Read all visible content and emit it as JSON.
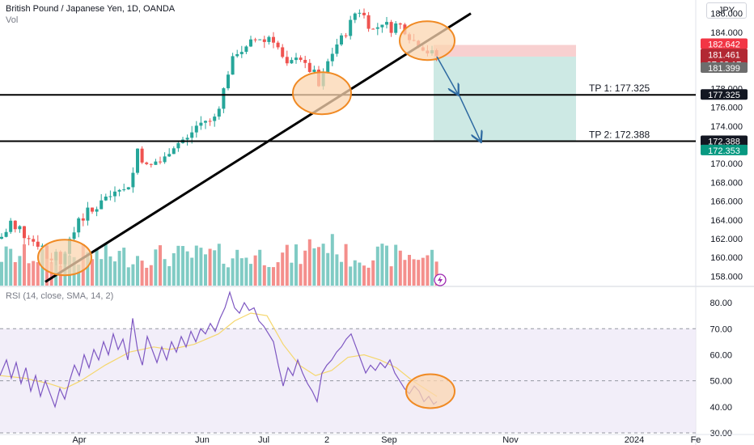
{
  "header": {
    "title": "British Pound / Japanese Yen, 1D, OANDA",
    "vol_label": "Vol",
    "currency": "JPY",
    "rsi_label": "RSI (14, close, SMA, 14, 2)"
  },
  "colors": {
    "up": "#26a69a",
    "down": "#ef5350",
    "vol_up": "#80cbc4",
    "vol_down": "#f48f8c",
    "rsi": "#7e57c2",
    "rsi_ma": "#f5d76e",
    "circle_fill": "#fbd5b0",
    "circle_stroke": "#f08a24",
    "target_zone": "#cde9e4",
    "stop_zone": "#f8d0d0",
    "arrow": "#2e6aa1"
  },
  "chart_data": {
    "type": "candlestick",
    "ylim": [
      157,
      187
    ],
    "y_ticks": [
      "186.000",
      "184.000",
      "182.000",
      "180.000",
      "178.000",
      "176.000",
      "174.000",
      "172.000",
      "170.000",
      "168.000",
      "166.000",
      "164.000",
      "162.000",
      "160.000",
      "158.000"
    ],
    "x_ticks": [
      "Apr",
      "Jun",
      "Jul",
      "2",
      "Sep",
      "Nov",
      "2024",
      "Fe"
    ],
    "close_path": [
      [
        0,
        162.0
      ],
      [
        8,
        162.8
      ],
      [
        14,
        164.0
      ],
      [
        20,
        162.6
      ],
      [
        26,
        163.4
      ],
      [
        32,
        161.8
      ],
      [
        38,
        162.6
      ],
      [
        44,
        161.0
      ],
      [
        50,
        161.9
      ],
      [
        56,
        160.2
      ],
      [
        62,
        159.6
      ],
      [
        68,
        160.8
      ],
      [
        74,
        159.4
      ],
      [
        80,
        160.7
      ],
      [
        86,
        161.6
      ],
      [
        92,
        162.8
      ],
      [
        98,
        164.6
      ],
      [
        104,
        164.0
      ],
      [
        110,
        165.3
      ],
      [
        116,
        164.6
      ],
      [
        122,
        165.9
      ],
      [
        128,
        166.6
      ],
      [
        134,
        166.2
      ],
      [
        140,
        167.1
      ],
      [
        146,
        167.8
      ],
      [
        152,
        167.0
      ],
      [
        158,
        167.6
      ],
      [
        164,
        168.8
      ],
      [
        170,
        171.6
      ],
      [
        176,
        170.4
      ],
      [
        182,
        169.6
      ],
      [
        188,
        169.8
      ],
      [
        194,
        170.4
      ],
      [
        200,
        170.1
      ],
      [
        206,
        170.9
      ],
      [
        212,
        171.8
      ],
      [
        218,
        172.0
      ],
      [
        224,
        172.6
      ],
      [
        230,
        172.4
      ],
      [
        236,
        173.2
      ],
      [
        242,
        174.0
      ],
      [
        248,
        174.3
      ],
      [
        254,
        174.6
      ],
      [
        260,
        174.4
      ],
      [
        266,
        175.1
      ],
      [
        272,
        176.5
      ],
      [
        278,
        178.4
      ],
      [
        284,
        180.4
      ],
      [
        290,
        181.5
      ],
      [
        296,
        182.3
      ],
      [
        302,
        181.8
      ],
      [
        308,
        182.8
      ],
      [
        314,
        183.1
      ],
      [
        320,
        183.5
      ],
      [
        326,
        182.9
      ],
      [
        332,
        183.6
      ],
      [
        338,
        183.2
      ],
      [
        344,
        182.3
      ],
      [
        350,
        181.0
      ],
      [
        356,
        180.2
      ],
      [
        362,
        181.0
      ],
      [
        368,
        181.9
      ],
      [
        374,
        180.8
      ],
      [
        380,
        180.0
      ],
      [
        386,
        179.9
      ],
      [
        392,
        179.2
      ],
      [
        396,
        177.2
      ],
      [
        400,
        179.6
      ],
      [
        406,
        181.0
      ],
      [
        412,
        182.0
      ],
      [
        418,
        183.0
      ],
      [
        424,
        183.5
      ],
      [
        430,
        184.3
      ],
      [
        436,
        185.7
      ],
      [
        442,
        186.4
      ],
      [
        448,
        186.1
      ],
      [
        454,
        185.0
      ],
      [
        460,
        184.2
      ],
      [
        466,
        184.5
      ],
      [
        472,
        185.1
      ],
      [
        478,
        184.8
      ],
      [
        484,
        184.3
      ],
      [
        490,
        184.9
      ],
      [
        496,
        184.7
      ],
      [
        502,
        184.0
      ],
      [
        508,
        183.3
      ],
      [
        514,
        182.9
      ],
      [
        520,
        182.6
      ],
      [
        526,
        182.1
      ],
      [
        532,
        181.6
      ],
      [
        536,
        181.9
      ],
      [
        540,
        181.46
      ]
    ],
    "last_price": 181.461,
    "countdown": "07:03:17",
    "price_labels": [
      {
        "text": "182.642",
        "value": 182.642,
        "color": "#f23645"
      },
      {
        "text": "181.461",
        "value": 181.461,
        "color": "#b22833"
      },
      {
        "text": "181.399",
        "value": 181.399,
        "color": "#6d6d6d"
      },
      {
        "text": "177.325",
        "value": 177.325,
        "color": "#131722"
      },
      {
        "text": "172.388",
        "value": 172.388,
        "color": "#131722"
      },
      {
        "text": "172.353",
        "value": 172.353,
        "color": "#089981"
      }
    ],
    "annotations": {
      "tp1": {
        "text": "TP 1: 177.325",
        "value": 177.325
      },
      "tp2": {
        "text": "TP 2: 172.388",
        "value": 172.388
      },
      "entry": 181.399,
      "stop": 182.642,
      "target": 172.388
    },
    "rsi": {
      "ylim": [
        30,
        85
      ],
      "y_ticks": [
        "80.00",
        "70.00",
        "60.00",
        "50.00",
        "40.00",
        "30.00"
      ],
      "band": [
        30,
        70
      ],
      "midline": 50,
      "values": [
        [
          0,
          52
        ],
        [
          8,
          58
        ],
        [
          14,
          51
        ],
        [
          20,
          57
        ],
        [
          26,
          49
        ],
        [
          32,
          55
        ],
        [
          38,
          46
        ],
        [
          44,
          52
        ],
        [
          50,
          44
        ],
        [
          56,
          50
        ],
        [
          62,
          45
        ],
        [
          68,
          40
        ],
        [
          74,
          47
        ],
        [
          80,
          43
        ],
        [
          86,
          50
        ],
        [
          92,
          56
        ],
        [
          98,
          52
        ],
        [
          104,
          60
        ],
        [
          110,
          55
        ],
        [
          116,
          62
        ],
        [
          122,
          58
        ],
        [
          128,
          65
        ],
        [
          134,
          60
        ],
        [
          140,
          68
        ],
        [
          146,
          62
        ],
        [
          152,
          66
        ],
        [
          158,
          58
        ],
        [
          164,
          74
        ],
        [
          170,
          62
        ],
        [
          176,
          56
        ],
        [
          182,
          67
        ],
        [
          188,
          62
        ],
        [
          194,
          57
        ],
        [
          200,
          63
        ],
        [
          206,
          58
        ],
        [
          212,
          65
        ],
        [
          218,
          61
        ],
        [
          224,
          67
        ],
        [
          230,
          63
        ],
        [
          236,
          69
        ],
        [
          242,
          65
        ],
        [
          248,
          70
        ],
        [
          254,
          68
        ],
        [
          260,
          72
        ],
        [
          266,
          69
        ],
        [
          272,
          74
        ],
        [
          278,
          78
        ],
        [
          284,
          84
        ],
        [
          290,
          78
        ],
        [
          296,
          76
        ],
        [
          302,
          80
        ],
        [
          308,
          77
        ],
        [
          314,
          78
        ],
        [
          320,
          73
        ],
        [
          326,
          71
        ],
        [
          332,
          68
        ],
        [
          338,
          65
        ],
        [
          344,
          56
        ],
        [
          350,
          48
        ],
        [
          356,
          55
        ],
        [
          362,
          52
        ],
        [
          368,
          58
        ],
        [
          374,
          53
        ],
        [
          380,
          49
        ],
        [
          386,
          46
        ],
        [
          392,
          42
        ],
        [
          398,
          53
        ],
        [
          404,
          56
        ],
        [
          410,
          58
        ],
        [
          416,
          61
        ],
        [
          422,
          63
        ],
        [
          428,
          66
        ],
        [
          434,
          68
        ],
        [
          440,
          63
        ],
        [
          446,
          58
        ],
        [
          452,
          53
        ],
        [
          458,
          56
        ],
        [
          464,
          54
        ],
        [
          470,
          57
        ],
        [
          476,
          55
        ],
        [
          482,
          58
        ],
        [
          488,
          53
        ],
        [
          494,
          50
        ],
        [
          500,
          47
        ],
        [
          506,
          45
        ],
        [
          512,
          48
        ],
        [
          518,
          46
        ],
        [
          524,
          42
        ],
        [
          530,
          44
        ],
        [
          536,
          41
        ],
        [
          540,
          42
        ]
      ],
      "ma_values": [
        [
          0,
          52
        ],
        [
          30,
          51
        ],
        [
          60,
          49
        ],
        [
          80,
          47
        ],
        [
          100,
          50
        ],
        [
          130,
          56
        ],
        [
          160,
          61
        ],
        [
          190,
          63
        ],
        [
          210,
          62
        ],
        [
          240,
          64
        ],
        [
          270,
          68
        ],
        [
          290,
          73
        ],
        [
          310,
          76
        ],
        [
          330,
          75
        ],
        [
          350,
          64
        ],
        [
          370,
          56
        ],
        [
          390,
          52
        ],
        [
          410,
          54
        ],
        [
          430,
          59
        ],
        [
          450,
          60
        ],
        [
          470,
          58
        ],
        [
          490,
          55
        ],
        [
          510,
          50
        ],
        [
          530,
          46
        ],
        [
          540,
          44
        ]
      ]
    }
  }
}
